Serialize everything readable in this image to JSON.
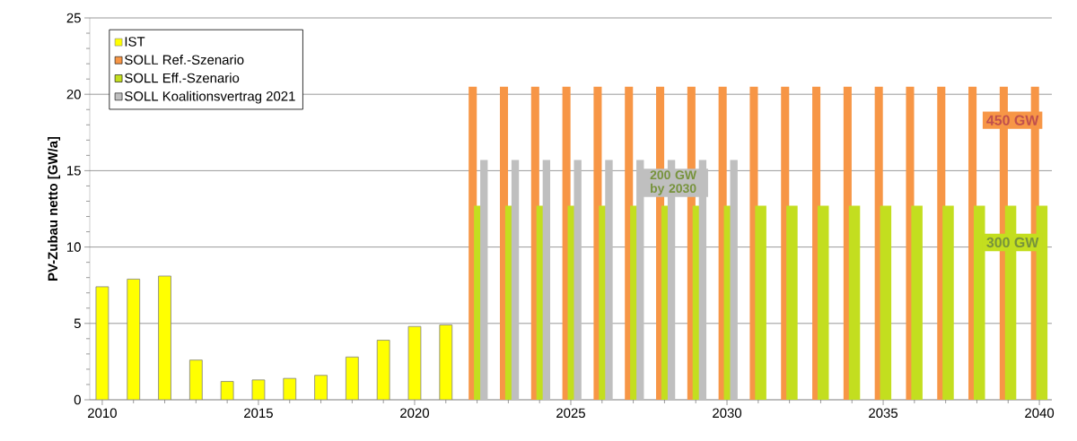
{
  "chart_data": {
    "type": "bar",
    "ylabel": "PV-Zubau netto [GW/a]",
    "xlim": [
      2009.6,
      2040.4
    ],
    "xticks": [
      2010,
      {
        "value": 2011,
        "label": null
      },
      {
        "value": 2012,
        "label": null
      },
      {
        "value": 2013,
        "label": null
      },
      {
        "value": 2014,
        "label": null
      },
      2015,
      {
        "value": 2016,
        "label": null
      },
      {
        "value": 2017,
        "label": null
      },
      {
        "value": 2018,
        "label": null
      },
      {
        "value": 2019,
        "label": null
      },
      2020,
      {
        "value": 2021,
        "label": null
      },
      {
        "value": 2022,
        "label": null
      },
      {
        "value": 2023,
        "label": null
      },
      {
        "value": 2024,
        "label": null
      },
      2025,
      {
        "value": 2026,
        "label": null
      },
      {
        "value": 2027,
        "label": null
      },
      {
        "value": 2028,
        "label": null
      },
      {
        "value": 2029,
        "label": null
      },
      2030,
      {
        "value": 2031,
        "label": null
      },
      {
        "value": 2032,
        "label": null
      },
      {
        "value": 2033,
        "label": null
      },
      {
        "value": 2034,
        "label": null
      },
      2035,
      {
        "value": 2036,
        "label": null
      },
      {
        "value": 2037,
        "label": null
      },
      {
        "value": 2038,
        "label": null
      },
      {
        "value": 2039,
        "label": null
      },
      2040
    ],
    "ylim": [
      0,
      25
    ],
    "yticks": [
      0,
      {
        "value": 1,
        "label": null
      },
      {
        "value": 2,
        "label": null
      },
      {
        "value": 3,
        "label": null
      },
      {
        "value": 4,
        "label": null
      },
      5,
      {
        "value": 6,
        "label": null
      },
      {
        "value": 7,
        "label": null
      },
      {
        "value": 8,
        "label": null
      },
      {
        "value": 9,
        "label": null
      },
      10,
      {
        "value": 11,
        "label": null
      },
      {
        "value": 12,
        "label": null
      },
      {
        "value": 13,
        "label": null
      },
      {
        "value": 14,
        "label": null
      },
      15,
      {
        "value": 16,
        "label": null
      },
      {
        "value": 17,
        "label": null
      },
      {
        "value": 18,
        "label": null
      },
      {
        "value": 19,
        "label": null
      },
      20,
      {
        "value": 21,
        "label": null
      },
      {
        "value": 22,
        "label": null
      },
      {
        "value": 23,
        "label": null
      },
      {
        "value": 24,
        "label": null
      },
      25
    ],
    "grid": "y",
    "legend": "top left",
    "series": [
      {
        "name": "IST",
        "color": "#ffff00",
        "x": [
          2010,
          2011,
          2012,
          2013,
          2014,
          2015,
          2016,
          2017,
          2018,
          2019,
          2020,
          2021
        ],
        "values": [
          7.4,
          7.9,
          8.1,
          2.6,
          1.2,
          1.3,
          1.4,
          1.6,
          2.8,
          3.9,
          4.8,
          4.9
        ]
      },
      {
        "name": "SOLL Ref.-Szenario",
        "color": "#f79646",
        "x": [
          2022,
          2023,
          2024,
          2025,
          2026,
          2027,
          2028,
          2029,
          2030,
          2031,
          2032,
          2033,
          2034,
          2035,
          2036,
          2037,
          2038,
          2039,
          2040
        ],
        "values": [
          20.5,
          20.5,
          20.5,
          20.5,
          20.5,
          20.5,
          20.5,
          20.5,
          20.5,
          20.5,
          20.5,
          20.5,
          20.5,
          20.5,
          20.5,
          20.5,
          20.5,
          20.5,
          20.5
        ]
      },
      {
        "name": "SOLL Eff.-Szenario",
        "color": "#c3de1f",
        "x": [
          2022,
          2023,
          2024,
          2025,
          2026,
          2027,
          2028,
          2029,
          2030,
          2031,
          2032,
          2033,
          2034,
          2035,
          2036,
          2037,
          2038,
          2039,
          2040
        ],
        "values": [
          12.7,
          12.7,
          12.7,
          12.7,
          12.7,
          12.7,
          12.7,
          12.7,
          12.7,
          12.7,
          12.7,
          12.7,
          12.7,
          12.7,
          12.7,
          12.7,
          12.7,
          12.7,
          12.7
        ]
      },
      {
        "name": "SOLL Koalitionsvertrag 2021",
        "color": "#bfbfbf",
        "x": [
          2022,
          2023,
          2024,
          2025,
          2026,
          2027,
          2028,
          2029,
          2030
        ],
        "values": [
          15.7,
          15.7,
          15.7,
          15.7,
          15.7,
          15.7,
          15.7,
          15.7,
          15.7
        ]
      }
    ],
    "annotations": [
      "450 GW",
      "300 GW",
      "200 GW by 2030"
    ]
  }
}
